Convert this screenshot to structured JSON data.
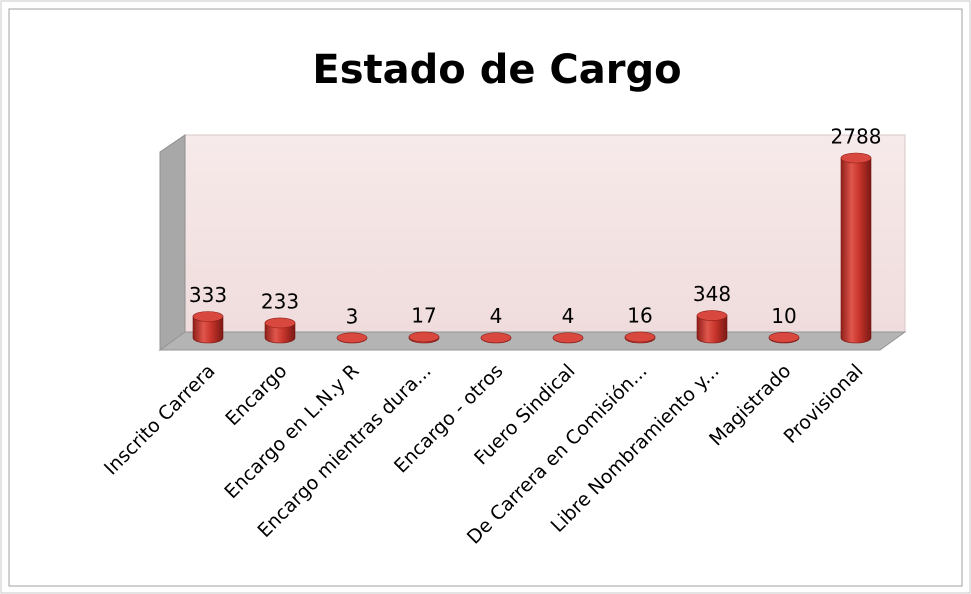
{
  "chart_data": {
    "type": "bar",
    "title": "Estado de Cargo",
    "categories": [
      "Inscrito Carrera",
      "Encargo",
      "Encargo en L.N.y R",
      "Encargo mientras dura...",
      "Encargo - otros",
      "Fuero Sindical",
      "De Carrera en Comisión...",
      "Libre Nombramiento y...",
      "Magistrado",
      "Provisional"
    ],
    "values": [
      333,
      233,
      3,
      17,
      4,
      4,
      16,
      348,
      10,
      2788
    ],
    "color": "#c0392b"
  }
}
